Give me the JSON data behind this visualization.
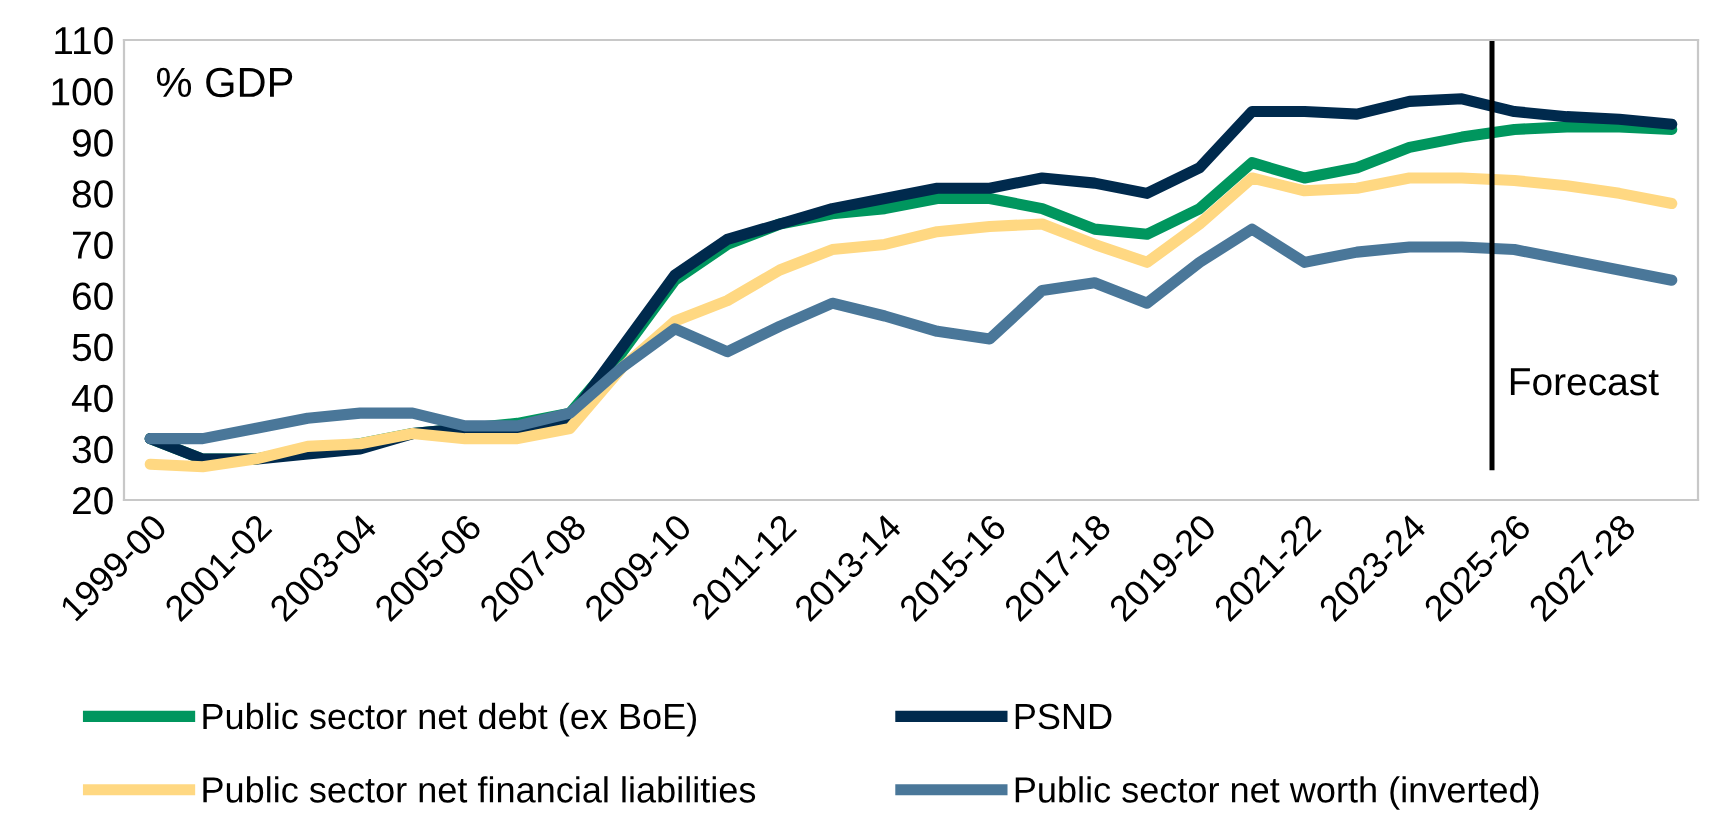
{
  "chart_data": {
    "type": "line",
    "categories": [
      "1999-00",
      null,
      "2001-02",
      null,
      "2003-04",
      null,
      "2005-06",
      null,
      "2007-08",
      null,
      "2009-10",
      null,
      "2011-12",
      null,
      "2013-14",
      null,
      "2015-16",
      null,
      "2017-18",
      null,
      "2019-20",
      null,
      "2021-22",
      null,
      "2023-24",
      null,
      "2025-26",
      null,
      "2027-28",
      null
    ],
    "series": [
      {
        "name": "Public sector net debt (ex BoE)",
        "color": "#00965e",
        "values": [
          32,
          28,
          28,
          30,
          31,
          33,
          34,
          35,
          37,
          49,
          63,
          70,
          74,
          76,
          77,
          79,
          79,
          77,
          73,
          72,
          77,
          86,
          83,
          85,
          89,
          91,
          92.5,
          93,
          93,
          92.5
        ]
      },
      {
        "name": "PSND",
        "color": "#002a4d",
        "values": [
          32,
          28,
          28,
          29,
          30,
          33,
          34,
          34,
          36,
          50,
          64,
          71,
          74,
          77,
          79,
          81,
          81,
          83,
          82,
          80,
          85,
          96,
          96,
          95.5,
          98,
          98.5,
          96,
          95,
          94.5,
          93.5
        ]
      },
      {
        "name": "Public sector net financial liabilities",
        "color": "#ffd882",
        "values": [
          27,
          26.5,
          28,
          30.5,
          31,
          33,
          32,
          32,
          34,
          46,
          55,
          59,
          65,
          69,
          70,
          72.5,
          73.5,
          74,
          70,
          66.5,
          74,
          83,
          80.5,
          81,
          83,
          83,
          82.5,
          81.5,
          80,
          78
        ]
      },
      {
        "name": "Public sector net worth (inverted)",
        "color": "#4a7799",
        "values": [
          32,
          32,
          34,
          36,
          37,
          37,
          34.5,
          34.5,
          37,
          46,
          53.5,
          49,
          54,
          58.5,
          56,
          53,
          51.5,
          61,
          62.5,
          58.5,
          66.5,
          73,
          66.5,
          68.5,
          69.5,
          69.5,
          69,
          67,
          65,
          63
        ]
      }
    ],
    "ylim": [
      20,
      110
    ],
    "yticks": [
      20,
      30,
      40,
      50,
      60,
      70,
      80,
      90,
      100,
      110
    ],
    "annotations": [
      "% GDP",
      "Forecast"
    ],
    "grid": false,
    "legend": "bottom",
    "marker": "none",
    "line_style": "solid"
  }
}
